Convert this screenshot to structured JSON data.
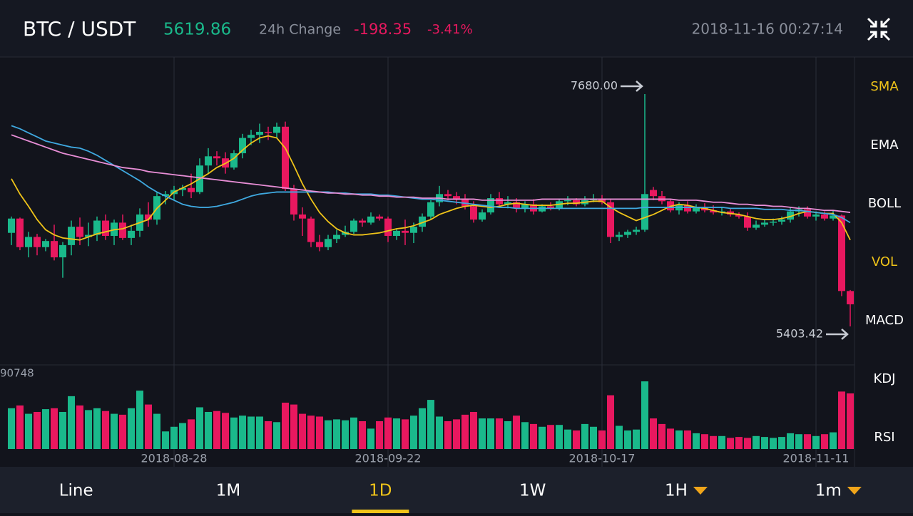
{
  "header": {
    "pair": "BTC / USDT",
    "price": "5619.86",
    "change_label": "24h Change",
    "change": "-198.35",
    "change_pct": "-3.41%",
    "time": "2018-11-16 00:27:14"
  },
  "indicators": [
    {
      "label": "SMA",
      "active": true
    },
    {
      "label": "EMA",
      "active": false
    },
    {
      "label": "BOLL",
      "active": false
    },
    {
      "label": "VOL",
      "active": true
    },
    {
      "label": "MACD",
      "active": false
    },
    {
      "label": "KDJ",
      "active": false
    },
    {
      "label": "RSI",
      "active": false
    }
  ],
  "timeframes": [
    {
      "label": "Line",
      "active": false,
      "dropdown": false
    },
    {
      "label": "1M",
      "active": false,
      "dropdown": false
    },
    {
      "label": "1D",
      "active": true,
      "dropdown": false
    },
    {
      "label": "1W",
      "active": false,
      "dropdown": false
    },
    {
      "label": "1H",
      "active": false,
      "dropdown": true
    },
    {
      "label": "1m",
      "active": false,
      "dropdown": true
    }
  ],
  "chart_data": {
    "type": "candlestick",
    "categories": [
      null,
      null,
      null,
      null,
      null,
      null,
      null,
      null,
      null,
      null,
      null,
      null,
      null,
      null,
      null,
      null,
      null,
      null,
      null,
      "2018-08-28",
      null,
      null,
      null,
      null,
      null,
      null,
      null,
      null,
      null,
      null,
      null,
      null,
      null,
      null,
      null,
      null,
      null,
      null,
      null,
      null,
      null,
      null,
      null,
      null,
      "2018-09-22",
      null,
      null,
      null,
      null,
      null,
      null,
      null,
      null,
      null,
      null,
      null,
      null,
      null,
      null,
      null,
      null,
      null,
      null,
      null,
      null,
      null,
      null,
      null,
      null,
      "2018-10-17",
      null,
      null,
      null,
      null,
      null,
      null,
      null,
      null,
      null,
      null,
      null,
      null,
      null,
      null,
      null,
      null,
      null,
      null,
      null,
      null,
      null,
      null,
      null,
      null,
      "2018-11-11",
      null,
      null,
      null,
      null
    ],
    "open": [
      6320,
      6460,
      6180,
      6280,
      6180,
      6240,
      6080,
      6200,
      6380,
      6280,
      6300,
      6440,
      6290,
      6420,
      6270,
      6340,
      6500,
      6450,
      6680,
      6700,
      6740,
      6760,
      6720,
      6980,
      7070,
      7050,
      6960,
      7100,
      7250,
      7280,
      7310,
      7300,
      7360,
      6750,
      6500,
      6460,
      6230,
      6180,
      6260,
      6300,
      6330,
      6440,
      6420,
      6480,
      6460,
      6290,
      6340,
      6320,
      6380,
      6480,
      6620,
      6700,
      6680,
      6650,
      6580,
      6450,
      6520,
      6660,
      6600,
      6620,
      6560,
      6600,
      6530,
      6580,
      6560,
      6630,
      6640,
      6600,
      6640,
      6650,
      6620,
      6280,
      6300,
      6330,
      6350,
      6740,
      6680,
      6630,
      6540,
      6590,
      6530,
      6570,
      6540,
      6520,
      6530,
      6500,
      6480,
      6370,
      6400,
      6420,
      6430,
      6450,
      6530,
      6550,
      6480,
      6500,
      6460,
      6490,
      5750
    ],
    "high": [
      6480,
      6470,
      6330,
      6310,
      6260,
      6400,
      6230,
      6440,
      6470,
      6420,
      6480,
      6500,
      6450,
      6500,
      6400,
      6560,
      6620,
      6720,
      6730,
      6780,
      6790,
      6900,
      7050,
      7150,
      7120,
      7110,
      7130,
      7290,
      7330,
      7390,
      7360,
      7400,
      7410,
      6790,
      6570,
      6480,
      6300,
      6300,
      6350,
      6390,
      6460,
      6460,
      6520,
      6500,
      6480,
      6360,
      6450,
      6420,
      6510,
      6640,
      6780,
      6740,
      6720,
      6700,
      6630,
      6550,
      6700,
      6720,
      6680,
      6660,
      6630,
      6650,
      6600,
      6620,
      6650,
      6680,
      6660,
      6680,
      6700,
      6690,
      6650,
      6330,
      6350,
      6380,
      7680,
      6770,
      6730,
      6650,
      6620,
      6630,
      6600,
      6610,
      6590,
      6570,
      6560,
      6520,
      6520,
      6440,
      6450,
      6460,
      6480,
      6570,
      6580,
      6580,
      6530,
      6530,
      6540,
      6500,
      5760
    ],
    "low": [
      6200,
      6150,
      6080,
      6100,
      6140,
      6050,
      5880,
      6100,
      6200,
      6190,
      6240,
      6250,
      6200,
      6250,
      6200,
      6280,
      6380,
      6400,
      6600,
      6640,
      6680,
      6660,
      6700,
      6900,
      6980,
      6900,
      6940,
      7050,
      7180,
      7200,
      7230,
      7250,
      6730,
      6440,
      6290,
      6180,
      6140,
      6150,
      6220,
      6280,
      6310,
      6380,
      6400,
      6440,
      6230,
      6250,
      6200,
      6220,
      6330,
      6450,
      6580,
      6640,
      6600,
      6550,
      6420,
      6430,
      6500,
      6580,
      6560,
      6520,
      6520,
      6500,
      6520,
      6540,
      6540,
      6590,
      6580,
      6580,
      6620,
      6600,
      6220,
      6240,
      6270,
      6300,
      6330,
      6640,
      6600,
      6520,
      6500,
      6510,
      6510,
      6520,
      6500,
      6490,
      6480,
      6460,
      6340,
      6350,
      6380,
      6390,
      6400,
      6420,
      6480,
      6460,
      6440,
      6440,
      6440,
      5700,
      5403.42
    ],
    "close": [
      6460,
      6180,
      6280,
      6180,
      6240,
      6080,
      6200,
      6380,
      6280,
      6300,
      6440,
      6290,
      6420,
      6270,
      6340,
      6500,
      6450,
      6680,
      6700,
      6740,
      6760,
      6720,
      6980,
      7070,
      7050,
      6960,
      7100,
      7250,
      7280,
      7310,
      7300,
      7360,
      6750,
      6500,
      6460,
      6230,
      6180,
      6260,
      6300,
      6330,
      6440,
      6420,
      6480,
      6460,
      6290,
      6340,
      6320,
      6380,
      6480,
      6620,
      6700,
      6680,
      6650,
      6580,
      6450,
      6520,
      6660,
      6600,
      6620,
      6560,
      6600,
      6530,
      6580,
      6560,
      6630,
      6640,
      6600,
      6640,
      6650,
      6620,
      6280,
      6300,
      6330,
      6350,
      6700,
      6680,
      6630,
      6540,
      6590,
      6530,
      6570,
      6540,
      6520,
      6530,
      6500,
      6480,
      6370,
      6400,
      6420,
      6430,
      6450,
      6530,
      6550,
      6480,
      6500,
      6460,
      6490,
      5750,
      5619.86
    ],
    "volume": [
      44000,
      47000,
      38000,
      40000,
      43000,
      44000,
      40000,
      57000,
      47000,
      42000,
      44000,
      41000,
      38000,
      37000,
      44000,
      63000,
      48000,
      38000,
      19000,
      24000,
      28000,
      32000,
      45000,
      40000,
      41000,
      39000,
      34000,
      36000,
      35000,
      35000,
      30000,
      29000,
      50000,
      48000,
      38000,
      36000,
      35000,
      31000,
      32000,
      31000,
      34000,
      30000,
      22000,
      30000,
      34000,
      33000,
      32000,
      36000,
      44000,
      53000,
      35000,
      30000,
      32000,
      37000,
      40000,
      33000,
      33000,
      33000,
      30000,
      36000,
      29000,
      27000,
      24000,
      26000,
      26000,
      21000,
      20000,
      27000,
      24000,
      20000,
      58000,
      25000,
      20000,
      21000,
      73000,
      33000,
      27000,
      22000,
      20000,
      20000,
      17000,
      16000,
      14000,
      14000,
      12000,
      13000,
      12000,
      14000,
      13000,
      12000,
      13000,
      17000,
      16000,
      16000,
      14000,
      16000,
      18000,
      62000,
      60000
    ],
    "ma_lines": [
      {
        "color": "#f0c419",
        "values": [
          6850,
          6700,
          6580,
          6450,
          6350,
          6300,
          6270,
          6260,
          6250,
          6280,
          6310,
          6330,
          6350,
          6360,
          6390,
          6420,
          6450,
          6560,
          6640,
          6720,
          6760,
          6800,
          6850,
          6900,
          6960,
          7000,
          7050,
          7130,
          7200,
          7250,
          7270,
          7250,
          7150,
          6980,
          6800,
          6650,
          6520,
          6430,
          6360,
          6320,
          6300,
          6300,
          6310,
          6320,
          6340,
          6360,
          6370,
          6390,
          6420,
          6450,
          6500,
          6530,
          6560,
          6580,
          6590,
          6580,
          6570,
          6580,
          6600,
          6610,
          6600,
          6590,
          6590,
          6590,
          6600,
          6610,
          6610,
          6620,
          6630,
          6630,
          6570,
          6520,
          6480,
          6440,
          6470,
          6500,
          6540,
          6580,
          6600,
          6590,
          6570,
          6560,
          6540,
          6520,
          6510,
          6500,
          6480,
          6460,
          6450,
          6450,
          6460,
          6480,
          6510,
          6530,
          6520,
          6510,
          6510,
          6420,
          6250
        ]
      },
      {
        "color": "#3fa9e0",
        "values": [
          7370,
          7340,
          7300,
          7260,
          7220,
          7200,
          7180,
          7160,
          7150,
          7120,
          7080,
          7030,
          6980,
          6930,
          6880,
          6830,
          6770,
          6720,
          6680,
          6640,
          6600,
          6580,
          6570,
          6570,
          6580,
          6600,
          6620,
          6650,
          6680,
          6700,
          6710,
          6720,
          6720,
          6720,
          6720,
          6720,
          6720,
          6720,
          6710,
          6710,
          6700,
          6700,
          6700,
          6690,
          6690,
          6680,
          6670,
          6660,
          6650,
          6650,
          6640,
          6630,
          6620,
          6610,
          6600,
          6590,
          6580,
          6570,
          6570,
          6560,
          6560,
          6560,
          6560,
          6560,
          6560,
          6560,
          6560,
          6560,
          6560,
          6560,
          6560,
          6560,
          6560,
          6560,
          6570,
          6570,
          6570,
          6570,
          6570,
          6570,
          6570,
          6570,
          6570,
          6570,
          6560,
          6560,
          6560,
          6560,
          6550,
          6550,
          6550,
          6540,
          6540,
          6530,
          6520,
          6510,
          6500,
          6470,
          6420
        ]
      },
      {
        "color": "#e88ed6",
        "values": [
          7280,
          7250,
          7220,
          7190,
          7160,
          7130,
          7100,
          7080,
          7060,
          7040,
          7020,
          7000,
          6980,
          6960,
          6950,
          6940,
          6920,
          6910,
          6900,
          6890,
          6880,
          6870,
          6860,
          6850,
          6840,
          6830,
          6820,
          6810,
          6800,
          6790,
          6780,
          6770,
          6760,
          6750,
          6740,
          6730,
          6720,
          6710,
          6710,
          6700,
          6700,
          6690,
          6690,
          6680,
          6680,
          6670,
          6670,
          6670,
          6660,
          6660,
          6660,
          6650,
          6650,
          6650,
          6650,
          6640,
          6640,
          6640,
          6640,
          6640,
          6640,
          6640,
          6650,
          6650,
          6650,
          6650,
          6650,
          6650,
          6650,
          6650,
          6650,
          6650,
          6650,
          6650,
          6650,
          6650,
          6650,
          6650,
          6640,
          6640,
          6640,
          6630,
          6620,
          6620,
          6610,
          6600,
          6600,
          6590,
          6590,
          6580,
          6580,
          6570,
          6560,
          6560,
          6550,
          6540,
          6540,
          6530,
          6520
        ]
      }
    ],
    "up_color": "#1ab98b",
    "down_color": "#e8185f",
    "ylim": [
      5026,
      8043
    ],
    "vlim": [
      0,
      90748
    ],
    "high_label": {
      "value": 7680,
      "label": "7680.00"
    },
    "low_label": {
      "value": 5403.42,
      "label": "5403.42"
    }
  }
}
